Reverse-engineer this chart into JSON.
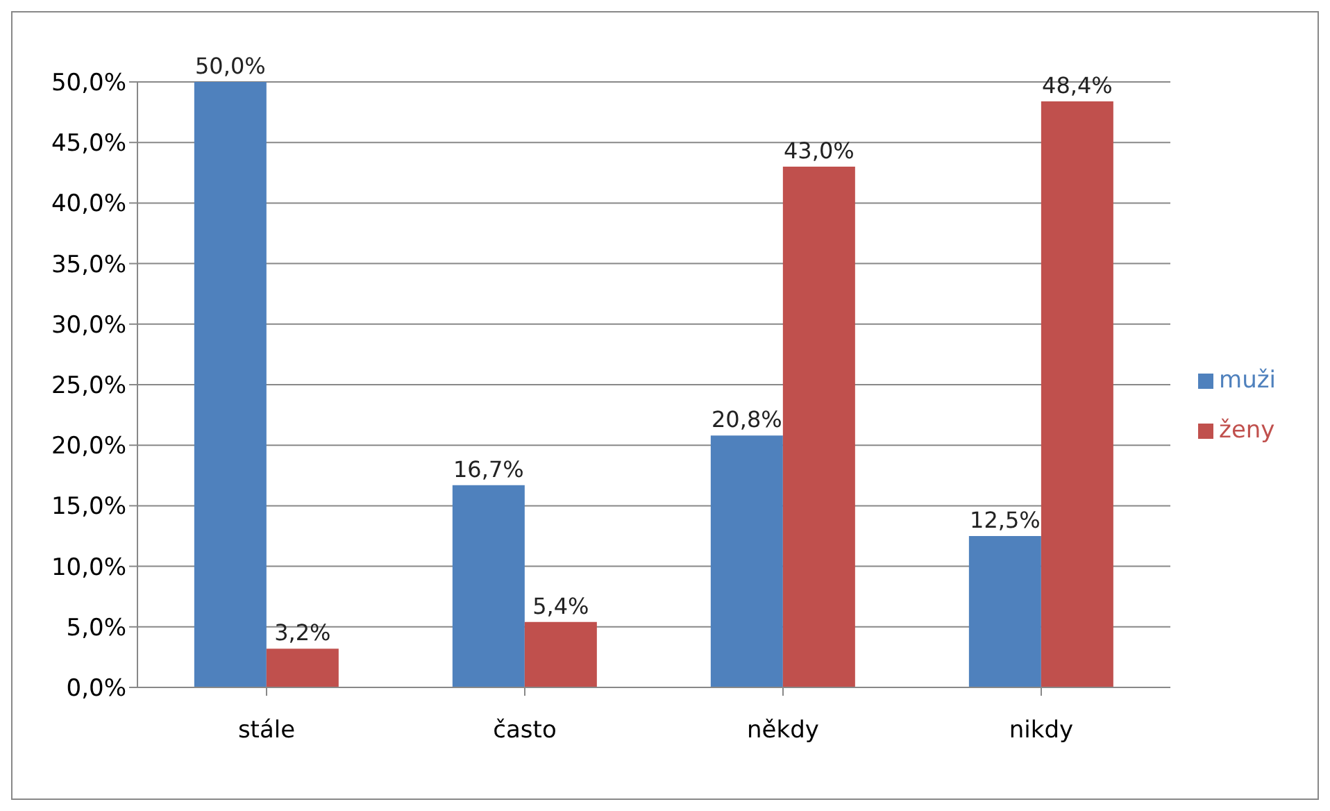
{
  "chart_data": {
    "type": "bar",
    "categories": [
      "stále",
      "často",
      "někdy",
      "nikdy"
    ],
    "series": [
      {
        "name": "muži",
        "color": "#4f81bd",
        "values": [
          50.0,
          16.7,
          20.8,
          12.5
        ],
        "value_labels": [
          "50,0%",
          "16,7%",
          "20,8%",
          "12,5%"
        ]
      },
      {
        "name": "ženy",
        "color": "#c0504d",
        "values": [
          3.2,
          5.4,
          43.0,
          48.4
        ],
        "value_labels": [
          "3,2%",
          "5,4%",
          "43,0%",
          "48,4%"
        ]
      }
    ],
    "ylim": [
      0,
      50
    ],
    "yticks": [
      {
        "value": 0,
        "label": "0,0%"
      },
      {
        "value": 5,
        "label": "5,0%"
      },
      {
        "value": 10,
        "label": "10,0%"
      },
      {
        "value": 15,
        "label": "15,0%"
      },
      {
        "value": 20,
        "label": "20,0%"
      },
      {
        "value": 25,
        "label": "25,0%"
      },
      {
        "value": 30,
        "label": "30,0%"
      },
      {
        "value": 35,
        "label": "35,0%"
      },
      {
        "value": 40,
        "label": "40,0%"
      },
      {
        "value": 45,
        "label": "45,0%"
      },
      {
        "value": 50,
        "label": "50,0%"
      }
    ],
    "grid": "y",
    "legend": "right"
  }
}
